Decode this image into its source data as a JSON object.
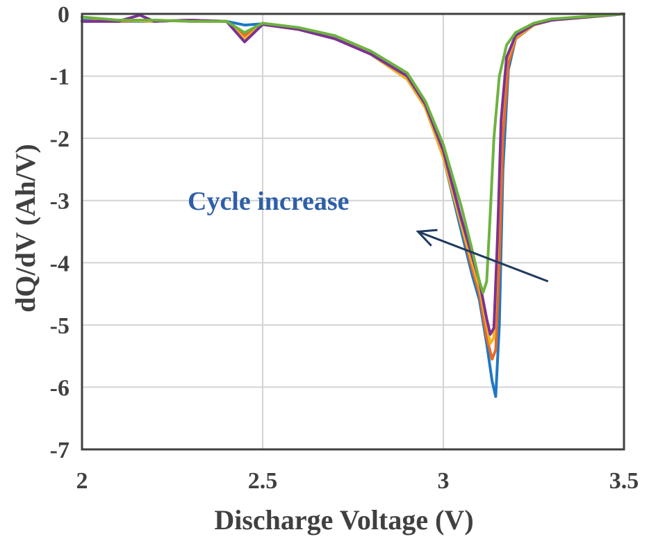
{
  "chart_data": {
    "type": "line",
    "title": "",
    "xlabel": "Discharge Voltage (V)",
    "ylabel": "dQ/dV (Ah/V)",
    "xlim": [
      2,
      3.5
    ],
    "ylim": [
      -7,
      0
    ],
    "xticks": [
      2,
      2.5,
      3,
      3.5
    ],
    "xtick_labels": [
      "2",
      "2.5",
      "3",
      "3.5"
    ],
    "yticks": [
      0,
      -1,
      -2,
      -3,
      -4,
      -5,
      -6,
      -7
    ],
    "ytick_labels": [
      "0",
      "-1",
      "-2",
      "-3",
      "-4",
      "-5",
      "-6",
      "-7"
    ],
    "grid": true,
    "legend": null,
    "annotation": {
      "text": "Cycle increase",
      "color": "#2E5FA8",
      "arrow_from": [
        3.29,
        -4.3
      ],
      "arrow_to": [
        2.93,
        -3.5
      ]
    },
    "colors": {
      "axis": "#404040",
      "grid": "#d3d3d3",
      "arrow": "#1f3a5f"
    },
    "series": [
      {
        "color": "#1f77c4",
        "x": [
          2.0,
          2.1,
          2.2,
          2.3,
          2.4,
          2.45,
          2.5,
          2.6,
          2.7,
          2.8,
          2.9,
          2.95,
          3.0,
          3.05,
          3.08,
          3.1,
          3.12,
          3.135,
          3.145,
          3.155,
          3.165,
          3.18,
          3.2,
          3.25,
          3.3,
          3.4,
          3.5
        ],
        "y": [
          -0.1,
          -0.12,
          -0.12,
          -0.1,
          -0.12,
          -0.18,
          -0.16,
          -0.25,
          -0.4,
          -0.65,
          -1.05,
          -1.5,
          -2.3,
          -3.5,
          -4.2,
          -4.6,
          -5.3,
          -5.9,
          -6.15,
          -5.0,
          -2.5,
          -0.9,
          -0.4,
          -0.18,
          -0.1,
          -0.05,
          0.0
        ]
      },
      {
        "color": "#e8692a",
        "x": [
          2.0,
          2.1,
          2.2,
          2.3,
          2.4,
          2.45,
          2.5,
          2.6,
          2.7,
          2.8,
          2.9,
          2.95,
          3.0,
          3.05,
          3.08,
          3.1,
          3.12,
          3.135,
          3.145,
          3.155,
          3.165,
          3.18,
          3.2,
          3.25,
          3.3,
          3.4,
          3.5
        ],
        "y": [
          -0.12,
          -0.12,
          -0.1,
          -0.12,
          -0.12,
          -0.35,
          -0.17,
          -0.25,
          -0.4,
          -0.65,
          -1.05,
          -1.5,
          -2.3,
          -3.4,
          -4.1,
          -4.5,
          -5.2,
          -5.55,
          -5.4,
          -4.0,
          -2.0,
          -0.8,
          -0.4,
          -0.18,
          -0.1,
          -0.05,
          0.0
        ]
      },
      {
        "color": "#f0b323",
        "x": [
          2.0,
          2.1,
          2.2,
          2.3,
          2.4,
          2.45,
          2.5,
          2.6,
          2.7,
          2.8,
          2.9,
          2.95,
          3.0,
          3.05,
          3.08,
          3.1,
          3.12,
          3.13,
          3.14,
          3.15,
          3.16,
          3.175,
          3.2,
          3.25,
          3.3,
          3.4,
          3.5
        ],
        "y": [
          -0.12,
          -0.1,
          -0.12,
          -0.1,
          -0.12,
          -0.4,
          -0.17,
          -0.25,
          -0.4,
          -0.65,
          -1.05,
          -1.5,
          -2.3,
          -3.4,
          -4.0,
          -4.4,
          -5.0,
          -5.3,
          -5.2,
          -3.8,
          -1.8,
          -0.75,
          -0.38,
          -0.18,
          -0.1,
          -0.05,
          0.0
        ]
      },
      {
        "color": "#7b3294",
        "x": [
          2.0,
          2.1,
          2.16,
          2.2,
          2.3,
          2.4,
          2.45,
          2.5,
          2.6,
          2.7,
          2.8,
          2.9,
          2.95,
          3.0,
          3.05,
          3.08,
          3.1,
          3.12,
          3.13,
          3.14,
          3.15,
          3.16,
          3.175,
          3.2,
          3.25,
          3.3,
          3.4,
          3.5
        ],
        "y": [
          -0.12,
          -0.12,
          -0.02,
          -0.12,
          -0.1,
          -0.12,
          -0.45,
          -0.17,
          -0.25,
          -0.4,
          -0.65,
          -1.0,
          -1.45,
          -2.2,
          -3.3,
          -3.9,
          -4.3,
          -4.9,
          -5.15,
          -5.05,
          -3.6,
          -1.7,
          -0.7,
          -0.35,
          -0.17,
          -0.1,
          -0.05,
          0.0
        ]
      },
      {
        "color": "#6db33f",
        "x": [
          2.0,
          2.1,
          2.2,
          2.3,
          2.4,
          2.45,
          2.5,
          2.6,
          2.7,
          2.8,
          2.9,
          2.95,
          3.0,
          3.05,
          3.08,
          3.1,
          3.11,
          3.12,
          3.13,
          3.14,
          3.155,
          3.175,
          3.2,
          3.25,
          3.3,
          3.4,
          3.5
        ],
        "y": [
          -0.05,
          -0.1,
          -0.1,
          -0.12,
          -0.12,
          -0.3,
          -0.15,
          -0.22,
          -0.35,
          -0.6,
          -0.95,
          -1.4,
          -2.1,
          -3.1,
          -3.8,
          -4.3,
          -4.48,
          -4.3,
          -3.2,
          -2.0,
          -1.0,
          -0.5,
          -0.3,
          -0.15,
          -0.08,
          -0.04,
          0.0
        ]
      }
    ]
  }
}
